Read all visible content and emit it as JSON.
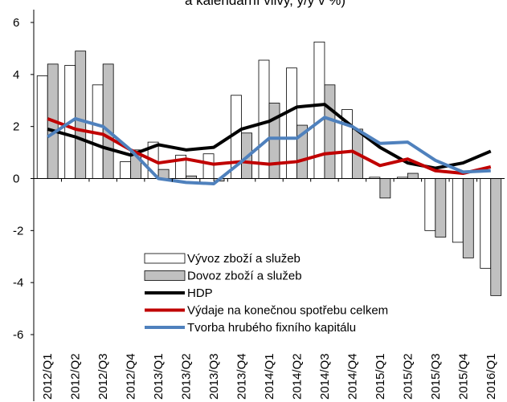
{
  "chart_data": {
    "type": "bar-line",
    "title": "a kalendářní vlivy, y/y v %)",
    "categories": [
      "2012/Q1",
      "2012/Q2",
      "2012/Q3",
      "2012/Q4",
      "2013/Q1",
      "2013/Q2",
      "2013/Q3",
      "2013/Q4",
      "2014/Q1",
      "2014/Q2",
      "2014/Q3",
      "2014/Q4",
      "2015/Q1",
      "2015/Q2",
      "2015/Q3",
      "2015/Q4",
      "2016/Q1"
    ],
    "series": [
      {
        "name": "Vývoz zboží a služeb",
        "kind": "bar",
        "color": "#ffffff",
        "values": [
          3.95,
          4.35,
          3.6,
          0.65,
          1.4,
          0.9,
          0.95,
          3.2,
          4.55,
          4.25,
          5.25,
          2.65,
          0.05,
          0.05,
          -2.0,
          -2.45,
          -3.45
        ]
      },
      {
        "name": "Dovoz zboží a služeb",
        "kind": "bar",
        "color": "#c0c0c0",
        "values": [
          4.4,
          4.9,
          4.4,
          1.1,
          0.35,
          0.1,
          -0.1,
          1.75,
          2.9,
          2.05,
          3.6,
          1.9,
          -0.75,
          0.2,
          -2.25,
          -3.05,
          -4.5
        ]
      },
      {
        "name": "HDP",
        "kind": "line",
        "color": "#000000",
        "values": [
          1.9,
          1.6,
          1.2,
          0.9,
          1.3,
          1.1,
          1.2,
          1.9,
          2.2,
          2.75,
          2.85,
          2.0,
          1.2,
          0.6,
          0.4,
          0.6,
          1.05
        ]
      },
      {
        "name": "Výdaje na konečnou spotřebu celkem",
        "kind": "line",
        "color": "#c00000",
        "values": [
          2.3,
          1.9,
          1.7,
          1.1,
          0.6,
          0.75,
          0.55,
          0.65,
          0.55,
          0.65,
          0.95,
          1.05,
          0.5,
          0.75,
          0.3,
          0.2,
          0.45
        ]
      },
      {
        "name": "Tvorba hrubého fixního kapitálu",
        "kind": "line",
        "color": "#4f81bd",
        "values": [
          1.6,
          2.3,
          2.0,
          1.1,
          0.0,
          -0.15,
          -0.2,
          0.65,
          1.55,
          1.55,
          2.35,
          2.0,
          1.35,
          1.4,
          0.7,
          0.25,
          0.3
        ]
      }
    ],
    "ylim": [
      -6,
      6
    ],
    "yticks": [
      -6,
      -4,
      -2,
      0,
      2,
      4,
      6
    ]
  }
}
